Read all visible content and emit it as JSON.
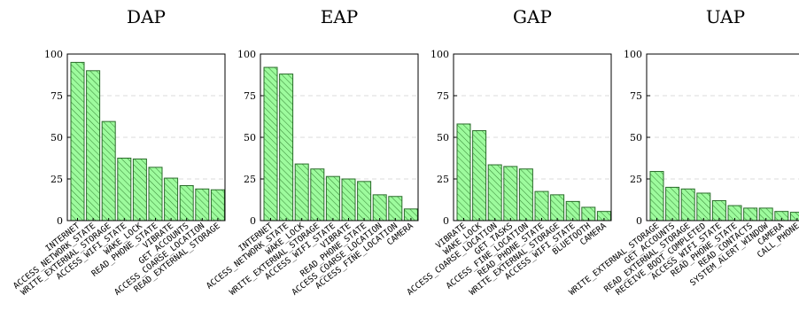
{
  "colors": {
    "bar_fill": "#9dfb9d",
    "bar_stroke": "#2a6b2a",
    "hatch": "#3c8c3c"
  },
  "chart_data": [
    {
      "type": "bar",
      "title": "DAP",
      "ylim": [
        0,
        100
      ],
      "yticks": [
        0,
        25,
        50,
        75,
        100
      ],
      "grid": true,
      "categories": [
        "INTERNET",
        "ACCESS_NETWORK_STATE",
        "WRITE_EXTERNAL_STORAGE",
        "ACCESS_WIFI_STATE",
        "WAKE_LOCK",
        "READ_PHONE_STATE",
        "VIBRATE",
        "GET_ACCOUNTS",
        "ACCESS_COARSE_LOCATION",
        "READ_EXTERNAL_STORAGE"
      ],
      "values": [
        95,
        90,
        59.5,
        37.5,
        37,
        32,
        25.5,
        21,
        19,
        18.5
      ]
    },
    {
      "type": "bar",
      "title": "EAP",
      "ylim": [
        0,
        100
      ],
      "yticks": [
        0,
        25,
        50,
        75,
        100
      ],
      "grid": true,
      "categories": [
        "INTERNET",
        "ACCESS_NETWORK_STATE",
        "WAKE_LOCK",
        "WRITE_EXTERNAL_STORAGE",
        "ACCESS_WIFI_STATE",
        "VIBRATE",
        "READ_PHONE_STATE",
        "ACCESS_COARSE_LOCATION",
        "ACCESS_FINE_LOCATION",
        "CAMERA"
      ],
      "values": [
        92,
        88,
        34,
        31,
        26.5,
        25,
        23.5,
        15.5,
        14.5,
        7
      ]
    },
    {
      "type": "bar",
      "title": "GAP",
      "ylim": [
        0,
        100
      ],
      "yticks": [
        0,
        25,
        50,
        75,
        100
      ],
      "grid": true,
      "categories": [
        "VIBRATE",
        "WAKE_LOCK",
        "ACCESS_COARSE_LOCATION",
        "GET_TASKS",
        "ACCESS_FINE_LOCATION",
        "READ_PHONE_STATE",
        "WRITE_EXTERNAL_STORAGE",
        "ACCESS_WIFI_STATE",
        "BLUETOOTH",
        "CAMERA"
      ],
      "values": [
        58,
        54,
        33.5,
        32.5,
        31,
        17.5,
        15.5,
        11.5,
        8,
        5.5
      ]
    },
    {
      "type": "bar",
      "title": "UAP",
      "ylim": [
        0,
        100
      ],
      "yticks": [
        0,
        25,
        50,
        75,
        100
      ],
      "grid": true,
      "categories": [
        "WRITE_EXTERNAL_STORAGE",
        "GET_ACCOUNTS",
        "READ_EXTERNAL_STORAGE",
        "RECEIVE_BOOT_COMPLETED",
        "ACCESS_WIFI_STATE",
        "READ_PHONE_STATE",
        "READ_CONTACTS",
        "SYSTEM_ALERT_WINDOW",
        "CAMERA",
        "CALL_PHONE"
      ],
      "values": [
        29.5,
        20,
        19,
        16.5,
        12,
        9,
        7.5,
        7.5,
        5.5,
        5
      ]
    }
  ]
}
